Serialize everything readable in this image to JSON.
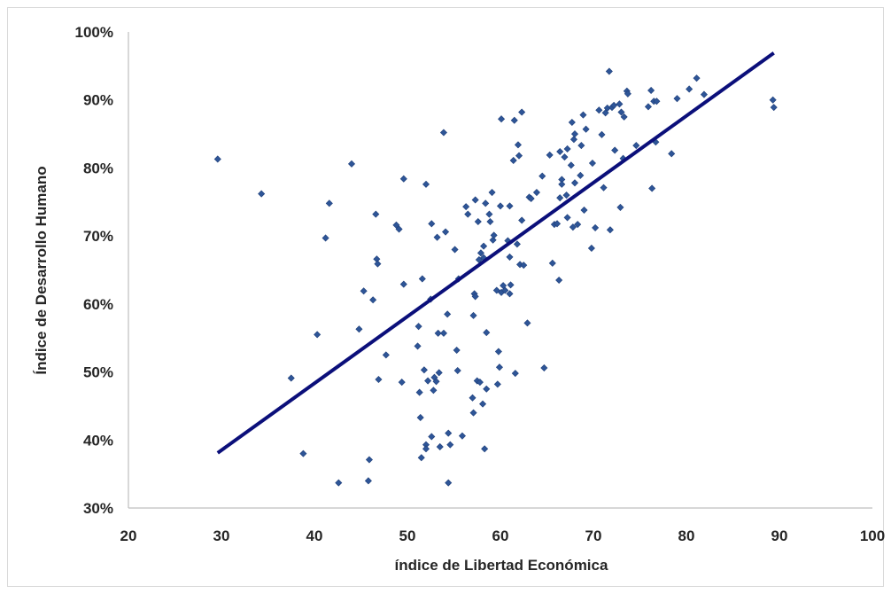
{
  "chart_data": {
    "type": "scatter",
    "title": "",
    "xlabel": "índice de Libertad Económica",
    "ylabel": "Índice de Desarrollo Humano",
    "xlim": [
      20,
      100
    ],
    "ylim": [
      0.3,
      1.0
    ],
    "x_ticks": [
      "20",
      "30",
      "40",
      "50",
      "60",
      "70",
      "80",
      "90",
      "100"
    ],
    "y_ticks": [
      "30%",
      "40%",
      "50%",
      "60%",
      "70%",
      "80%",
      "90%",
      "100%"
    ],
    "grid": false,
    "legend": "none",
    "marker_color": "#2e5597",
    "trendline_color": "#0b0f7a",
    "trendline": {
      "x": [
        29.6,
        89.4
      ],
      "y": [
        0.381,
        0.969
      ]
    },
    "points": [
      [
        29.6,
        0.813
      ],
      [
        34.3,
        0.762
      ],
      [
        37.5,
        0.491
      ],
      [
        38.8,
        0.38
      ],
      [
        40.3,
        0.555
      ],
      [
        41.2,
        0.697
      ],
      [
        41.6,
        0.748
      ],
      [
        42.6,
        0.337
      ],
      [
        44.0,
        0.806
      ],
      [
        44.8,
        0.563
      ],
      [
        45.3,
        0.619
      ],
      [
        45.8,
        0.34
      ],
      [
        45.9,
        0.371
      ],
      [
        46.3,
        0.606
      ],
      [
        46.6,
        0.732
      ],
      [
        46.7,
        0.666
      ],
      [
        46.8,
        0.659
      ],
      [
        46.9,
        0.489
      ],
      [
        47.7,
        0.525
      ],
      [
        48.8,
        0.716
      ],
      [
        49.1,
        0.71
      ],
      [
        49.4,
        0.485
      ],
      [
        49.6,
        0.629
      ],
      [
        49.6,
        0.784
      ],
      [
        51.1,
        0.538
      ],
      [
        51.2,
        0.567
      ],
      [
        51.3,
        0.47
      ],
      [
        51.4,
        0.433
      ],
      [
        51.5,
        0.374
      ],
      [
        51.6,
        0.637
      ],
      [
        51.8,
        0.503
      ],
      [
        52.0,
        0.776
      ],
      [
        52.0,
        0.393
      ],
      [
        52.0,
        0.387
      ],
      [
        52.2,
        0.487
      ],
      [
        52.5,
        0.607
      ],
      [
        52.6,
        0.718
      ],
      [
        52.6,
        0.405
      ],
      [
        52.8,
        0.473
      ],
      [
        52.9,
        0.492
      ],
      [
        53.1,
        0.486
      ],
      [
        53.2,
        0.698
      ],
      [
        53.3,
        0.557
      ],
      [
        53.4,
        0.499
      ],
      [
        53.5,
        0.39
      ],
      [
        53.9,
        0.852
      ],
      [
        53.9,
        0.557
      ],
      [
        54.1,
        0.706
      ],
      [
        54.3,
        0.585
      ],
      [
        54.4,
        0.337
      ],
      [
        54.4,
        0.41
      ],
      [
        54.6,
        0.393
      ],
      [
        55.1,
        0.68
      ],
      [
        55.3,
        0.532
      ],
      [
        55.4,
        0.502
      ],
      [
        55.5,
        0.637
      ],
      [
        55.9,
        0.406
      ],
      [
        56.3,
        0.743
      ],
      [
        56.5,
        0.732
      ],
      [
        57.0,
        0.462
      ],
      [
        57.1,
        0.44
      ],
      [
        57.1,
        0.583
      ],
      [
        57.2,
        0.615
      ],
      [
        57.3,
        0.611
      ],
      [
        57.3,
        0.753
      ],
      [
        57.5,
        0.487
      ],
      [
        57.6,
        0.721
      ],
      [
        57.7,
        0.665
      ],
      [
        57.8,
        0.485
      ],
      [
        57.9,
        0.675
      ],
      [
        58.1,
        0.453
      ],
      [
        58.2,
        0.668
      ],
      [
        58.2,
        0.685
      ],
      [
        58.3,
        0.387
      ],
      [
        58.4,
        0.748
      ],
      [
        58.5,
        0.475
      ],
      [
        58.5,
        0.558
      ],
      [
        58.8,
        0.732
      ],
      [
        58.9,
        0.721
      ],
      [
        59.1,
        0.764
      ],
      [
        59.2,
        0.694
      ],
      [
        59.3,
        0.701
      ],
      [
        59.6,
        0.62
      ],
      [
        59.7,
        0.482
      ],
      [
        59.8,
        0.53
      ],
      [
        59.9,
        0.507
      ],
      [
        60.0,
        0.744
      ],
      [
        60.1,
        0.872
      ],
      [
        60.1,
        0.617
      ],
      [
        60.3,
        0.627
      ],
      [
        60.5,
        0.62
      ],
      [
        60.8,
        0.693
      ],
      [
        61.0,
        0.744
      ],
      [
        61.0,
        0.669
      ],
      [
        61.0,
        0.615
      ],
      [
        61.1,
        0.628
      ],
      [
        61.4,
        0.811
      ],
      [
        61.5,
        0.87
      ],
      [
        61.6,
        0.498
      ],
      [
        61.8,
        0.688
      ],
      [
        61.9,
        0.834
      ],
      [
        62.0,
        0.818
      ],
      [
        62.1,
        0.658
      ],
      [
        62.3,
        0.723
      ],
      [
        62.3,
        0.882
      ],
      [
        62.5,
        0.657
      ],
      [
        62.9,
        0.572
      ],
      [
        63.1,
        0.757
      ],
      [
        63.3,
        0.755
      ],
      [
        63.9,
        0.764
      ],
      [
        64.5,
        0.788
      ],
      [
        64.7,
        0.506
      ],
      [
        65.3,
        0.819
      ],
      [
        65.6,
        0.66
      ],
      [
        65.8,
        0.717
      ],
      [
        66.1,
        0.718
      ],
      [
        66.3,
        0.635
      ],
      [
        66.4,
        0.756
      ],
      [
        66.4,
        0.824
      ],
      [
        66.6,
        0.783
      ],
      [
        66.6,
        0.776
      ],
      [
        66.9,
        0.816
      ],
      [
        67.1,
        0.76
      ],
      [
        67.2,
        0.727
      ],
      [
        67.2,
        0.828
      ],
      [
        67.6,
        0.804
      ],
      [
        67.7,
        0.867
      ],
      [
        67.8,
        0.713
      ],
      [
        67.9,
        0.842
      ],
      [
        68.0,
        0.85
      ],
      [
        68.0,
        0.778
      ],
      [
        68.3,
        0.717
      ],
      [
        68.6,
        0.789
      ],
      [
        68.7,
        0.833
      ],
      [
        68.9,
        0.878
      ],
      [
        69.0,
        0.738
      ],
      [
        69.2,
        0.857
      ],
      [
        69.8,
        0.682
      ],
      [
        69.9,
        0.807
      ],
      [
        70.2,
        0.712
      ],
      [
        70.6,
        0.885
      ],
      [
        70.9,
        0.849
      ],
      [
        71.1,
        0.771
      ],
      [
        71.3,
        0.881
      ],
      [
        71.5,
        0.888
      ],
      [
        71.7,
        0.942
      ],
      [
        71.8,
        0.709
      ],
      [
        72.0,
        0.889
      ],
      [
        72.2,
        0.892
      ],
      [
        72.3,
        0.826
      ],
      [
        72.8,
        0.894
      ],
      [
        72.9,
        0.742
      ],
      [
        73.0,
        0.882
      ],
      [
        73.2,
        0.814
      ],
      [
        73.3,
        0.875
      ],
      [
        73.6,
        0.913
      ],
      [
        73.7,
        0.909
      ],
      [
        74.6,
        0.833
      ],
      [
        75.9,
        0.89
      ],
      [
        76.2,
        0.914
      ],
      [
        76.3,
        0.77
      ],
      [
        76.5,
        0.898
      ],
      [
        76.7,
        0.838
      ],
      [
        76.8,
        0.898
      ],
      [
        78.4,
        0.821
      ],
      [
        79.0,
        0.902
      ],
      [
        80.3,
        0.916
      ],
      [
        81.1,
        0.932
      ],
      [
        81.9,
        0.908
      ],
      [
        89.3,
        0.9
      ],
      [
        89.4,
        0.889
      ]
    ]
  }
}
